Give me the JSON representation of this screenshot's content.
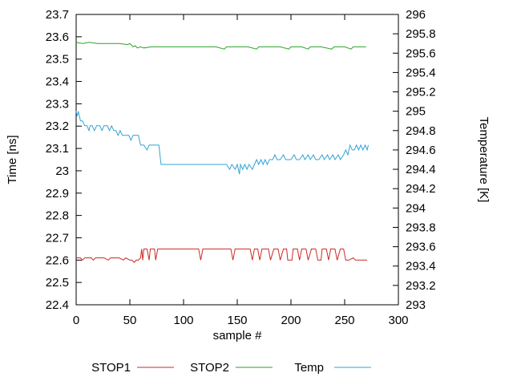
{
  "chart_data": {
    "type": "line",
    "title": "",
    "grid": false,
    "legend_position": "bottom",
    "x_axis": {
      "label": "sample #",
      "min": 0,
      "max": 300,
      "tick_step": 50
    },
    "y_left": {
      "label": "Time [ns]",
      "min": 22.4,
      "max": 23.7,
      "tick_step": 0.1
    },
    "y_right": {
      "label": "Temperature [K]",
      "min": 293,
      "max": 296,
      "tick_step": 0.2
    },
    "series": [
      {
        "name": "STOP1",
        "color": "#cc2a24",
        "axis": "left",
        "points": [
          [
            0,
            22.61
          ],
          [
            4,
            22.61
          ],
          [
            6,
            22.6
          ],
          [
            8,
            22.61
          ],
          [
            14,
            22.61
          ],
          [
            16,
            22.6
          ],
          [
            18,
            22.61
          ],
          [
            26,
            22.61
          ],
          [
            30,
            22.6
          ],
          [
            32,
            22.61
          ],
          [
            40,
            22.61
          ],
          [
            44,
            22.6
          ],
          [
            46,
            22.61
          ],
          [
            50,
            22.6
          ],
          [
            52,
            22.6
          ],
          [
            54,
            22.59
          ],
          [
            56,
            22.6
          ],
          [
            58,
            22.6
          ],
          [
            60,
            22.61
          ],
          [
            61,
            22.65
          ],
          [
            62,
            22.6
          ],
          [
            63,
            22.65
          ],
          [
            66,
            22.65
          ],
          [
            68,
            22.6
          ],
          [
            69,
            22.65
          ],
          [
            73,
            22.65
          ],
          [
            74,
            22.6
          ],
          [
            76,
            22.65
          ],
          [
            114,
            22.65
          ],
          [
            116,
            22.6
          ],
          [
            118,
            22.65
          ],
          [
            144,
            22.65
          ],
          [
            146,
            22.6
          ],
          [
            148,
            22.65
          ],
          [
            162,
            22.65
          ],
          [
            164,
            22.6
          ],
          [
            166,
            22.65
          ],
          [
            169,
            22.65
          ],
          [
            171,
            22.6
          ],
          [
            173,
            22.65
          ],
          [
            179,
            22.65
          ],
          [
            181,
            22.6
          ],
          [
            184,
            22.65
          ],
          [
            188,
            22.65
          ],
          [
            190,
            22.6
          ],
          [
            193,
            22.65
          ],
          [
            196,
            22.65
          ],
          [
            197,
            22.6
          ],
          [
            201,
            22.6
          ],
          [
            202,
            22.65
          ],
          [
            206,
            22.65
          ],
          [
            208,
            22.6
          ],
          [
            210,
            22.65
          ],
          [
            214,
            22.65
          ],
          [
            216,
            22.6
          ],
          [
            219,
            22.65
          ],
          [
            223,
            22.65
          ],
          [
            225,
            22.6
          ],
          [
            228,
            22.6
          ],
          [
            229,
            22.65
          ],
          [
            233,
            22.65
          ],
          [
            235,
            22.6
          ],
          [
            237,
            22.65
          ],
          [
            241,
            22.65
          ],
          [
            243,
            22.6
          ],
          [
            246,
            22.65
          ],
          [
            249,
            22.65
          ],
          [
            251,
            22.6
          ],
          [
            254,
            22.6
          ],
          [
            258,
            22.61
          ],
          [
            260,
            22.6
          ],
          [
            264,
            22.6
          ],
          [
            268,
            22.6
          ],
          [
            271,
            22.6
          ]
        ]
      },
      {
        "name": "STOP2",
        "color": "#2aa22a",
        "axis": "left",
        "points": [
          [
            0,
            23.575
          ],
          [
            6,
            23.57
          ],
          [
            12,
            23.575
          ],
          [
            20,
            23.57
          ],
          [
            30,
            23.57
          ],
          [
            40,
            23.57
          ],
          [
            48,
            23.565
          ],
          [
            50,
            23.57
          ],
          [
            53,
            23.555
          ],
          [
            55,
            23.56
          ],
          [
            57,
            23.55
          ],
          [
            60,
            23.555
          ],
          [
            63,
            23.55
          ],
          [
            70,
            23.555
          ],
          [
            80,
            23.555
          ],
          [
            90,
            23.555
          ],
          [
            100,
            23.555
          ],
          [
            110,
            23.555
          ],
          [
            120,
            23.555
          ],
          [
            130,
            23.555
          ],
          [
            138,
            23.545
          ],
          [
            140,
            23.555
          ],
          [
            150,
            23.555
          ],
          [
            160,
            23.555
          ],
          [
            168,
            23.545
          ],
          [
            170,
            23.555
          ],
          [
            180,
            23.555
          ],
          [
            190,
            23.555
          ],
          [
            198,
            23.545
          ],
          [
            200,
            23.555
          ],
          [
            210,
            23.555
          ],
          [
            216,
            23.545
          ],
          [
            218,
            23.555
          ],
          [
            228,
            23.555
          ],
          [
            238,
            23.545
          ],
          [
            240,
            23.555
          ],
          [
            250,
            23.555
          ],
          [
            256,
            23.545
          ],
          [
            258,
            23.555
          ],
          [
            264,
            23.555
          ],
          [
            270,
            23.555
          ]
        ]
      },
      {
        "name": "Temp",
        "color": "#35a3d5",
        "axis": "right",
        "points": [
          [
            0,
            295.0
          ],
          [
            1,
            294.95
          ],
          [
            2,
            295.0
          ],
          [
            3,
            294.95
          ],
          [
            4,
            294.9
          ],
          [
            6,
            294.9
          ],
          [
            8,
            294.85
          ],
          [
            10,
            294.85
          ],
          [
            12,
            294.8
          ],
          [
            13,
            294.85
          ],
          [
            15,
            294.85
          ],
          [
            17,
            294.8
          ],
          [
            19,
            294.85
          ],
          [
            22,
            294.85
          ],
          [
            24,
            294.8
          ],
          [
            26,
            294.85
          ],
          [
            29,
            294.85
          ],
          [
            31,
            294.8
          ],
          [
            33,
            294.85
          ],
          [
            35,
            294.8
          ],
          [
            37,
            294.8
          ],
          [
            39,
            294.75
          ],
          [
            41,
            294.8
          ],
          [
            43,
            294.75
          ],
          [
            46,
            294.75
          ],
          [
            49,
            294.75
          ],
          [
            51,
            294.7
          ],
          [
            53,
            294.75
          ],
          [
            56,
            294.75
          ],
          [
            58,
            294.75
          ],
          [
            60,
            294.65
          ],
          [
            63,
            294.65
          ],
          [
            66,
            294.6
          ],
          [
            68,
            294.65
          ],
          [
            71,
            294.65
          ],
          [
            74,
            294.65
          ],
          [
            77,
            294.65
          ],
          [
            79,
            294.45
          ],
          [
            82,
            294.45
          ],
          [
            86,
            294.45
          ],
          [
            90,
            294.45
          ],
          [
            95,
            294.45
          ],
          [
            100,
            294.45
          ],
          [
            105,
            294.45
          ],
          [
            110,
            294.45
          ],
          [
            115,
            294.45
          ],
          [
            120,
            294.45
          ],
          [
            125,
            294.45
          ],
          [
            130,
            294.45
          ],
          [
            135,
            294.45
          ],
          [
            140,
            294.45
          ],
          [
            143,
            294.4
          ],
          [
            145,
            294.45
          ],
          [
            148,
            294.4
          ],
          [
            150,
            294.45
          ],
          [
            152,
            294.35
          ],
          [
            153,
            294.45
          ],
          [
            155,
            294.4
          ],
          [
            157,
            294.45
          ],
          [
            159,
            294.4
          ],
          [
            161,
            294.45
          ],
          [
            164,
            294.4
          ],
          [
            166,
            294.45
          ],
          [
            168,
            294.5
          ],
          [
            170,
            294.45
          ],
          [
            172,
            294.5
          ],
          [
            174,
            294.45
          ],
          [
            176,
            294.5
          ],
          [
            178,
            294.45
          ],
          [
            180,
            294.5
          ],
          [
            183,
            294.5
          ],
          [
            185,
            294.55
          ],
          [
            187,
            294.5
          ],
          [
            190,
            294.5
          ],
          [
            193,
            294.55
          ],
          [
            195,
            294.5
          ],
          [
            198,
            294.5
          ],
          [
            200,
            294.5
          ],
          [
            203,
            294.55
          ],
          [
            205,
            294.5
          ],
          [
            208,
            294.5
          ],
          [
            211,
            294.55
          ],
          [
            213,
            294.5
          ],
          [
            216,
            294.55
          ],
          [
            218,
            294.5
          ],
          [
            221,
            294.55
          ],
          [
            223,
            294.5
          ],
          [
            226,
            294.5
          ],
          [
            229,
            294.55
          ],
          [
            231,
            294.5
          ],
          [
            234,
            294.55
          ],
          [
            236,
            294.5
          ],
          [
            239,
            294.55
          ],
          [
            241,
            294.5
          ],
          [
            244,
            294.55
          ],
          [
            246,
            294.5
          ],
          [
            249,
            294.55
          ],
          [
            251,
            294.6
          ],
          [
            253,
            294.55
          ],
          [
            255,
            294.65
          ],
          [
            257,
            294.6
          ],
          [
            259,
            294.6
          ],
          [
            261,
            294.65
          ],
          [
            263,
            294.6
          ],
          [
            265,
            294.65
          ],
          [
            267,
            294.6
          ],
          [
            269,
            294.65
          ],
          [
            271,
            294.6
          ],
          [
            272,
            294.65
          ]
        ]
      }
    ]
  }
}
